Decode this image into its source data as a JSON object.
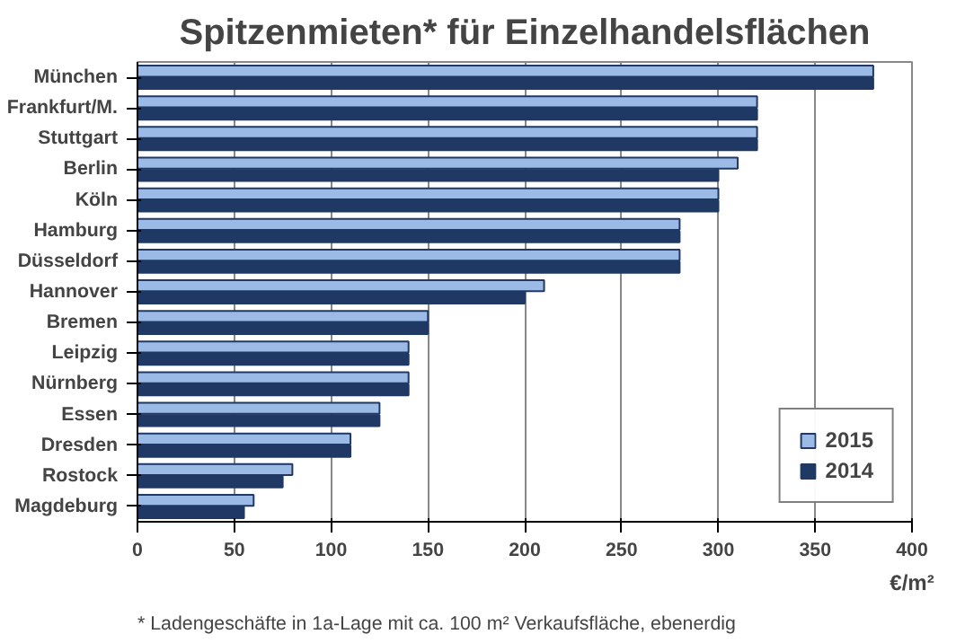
{
  "chart_data": {
    "type": "bar",
    "orientation": "horizontal",
    "title": "Spitzenmieten* für Einzelhandelsflächen",
    "xlabel": "€/m²",
    "categories": [
      "München",
      "Frankfurt/M.",
      "Stuttgart",
      "Berlin",
      "Köln",
      "Hamburg",
      "Düsseldorf",
      "Hannover",
      "Bremen",
      "Leipzig",
      "Nürnberg",
      "Essen",
      "Dresden",
      "Rostock",
      "Magdeburg"
    ],
    "series": [
      {
        "name": "2015",
        "color": "#9bbbe6",
        "values": [
          380,
          320,
          320,
          310,
          300,
          280,
          280,
          210,
          150,
          140,
          140,
          125,
          110,
          80,
          60
        ]
      },
      {
        "name": "2014",
        "color": "#1f3864",
        "values": [
          380,
          320,
          320,
          300,
          300,
          280,
          280,
          200,
          150,
          140,
          140,
          125,
          110,
          75,
          55
        ]
      }
    ],
    "xlim": [
      0,
      400
    ],
    "xticks": [
      0,
      50,
      100,
      150,
      200,
      250,
      300,
      350,
      400
    ],
    "grid": "x",
    "legend": "bottom right",
    "annotations": [
      "* Ladengeschäfte in 1a-Lage mit ca. 100 m² Verkaufsfläche, ebenerdig"
    ]
  }
}
